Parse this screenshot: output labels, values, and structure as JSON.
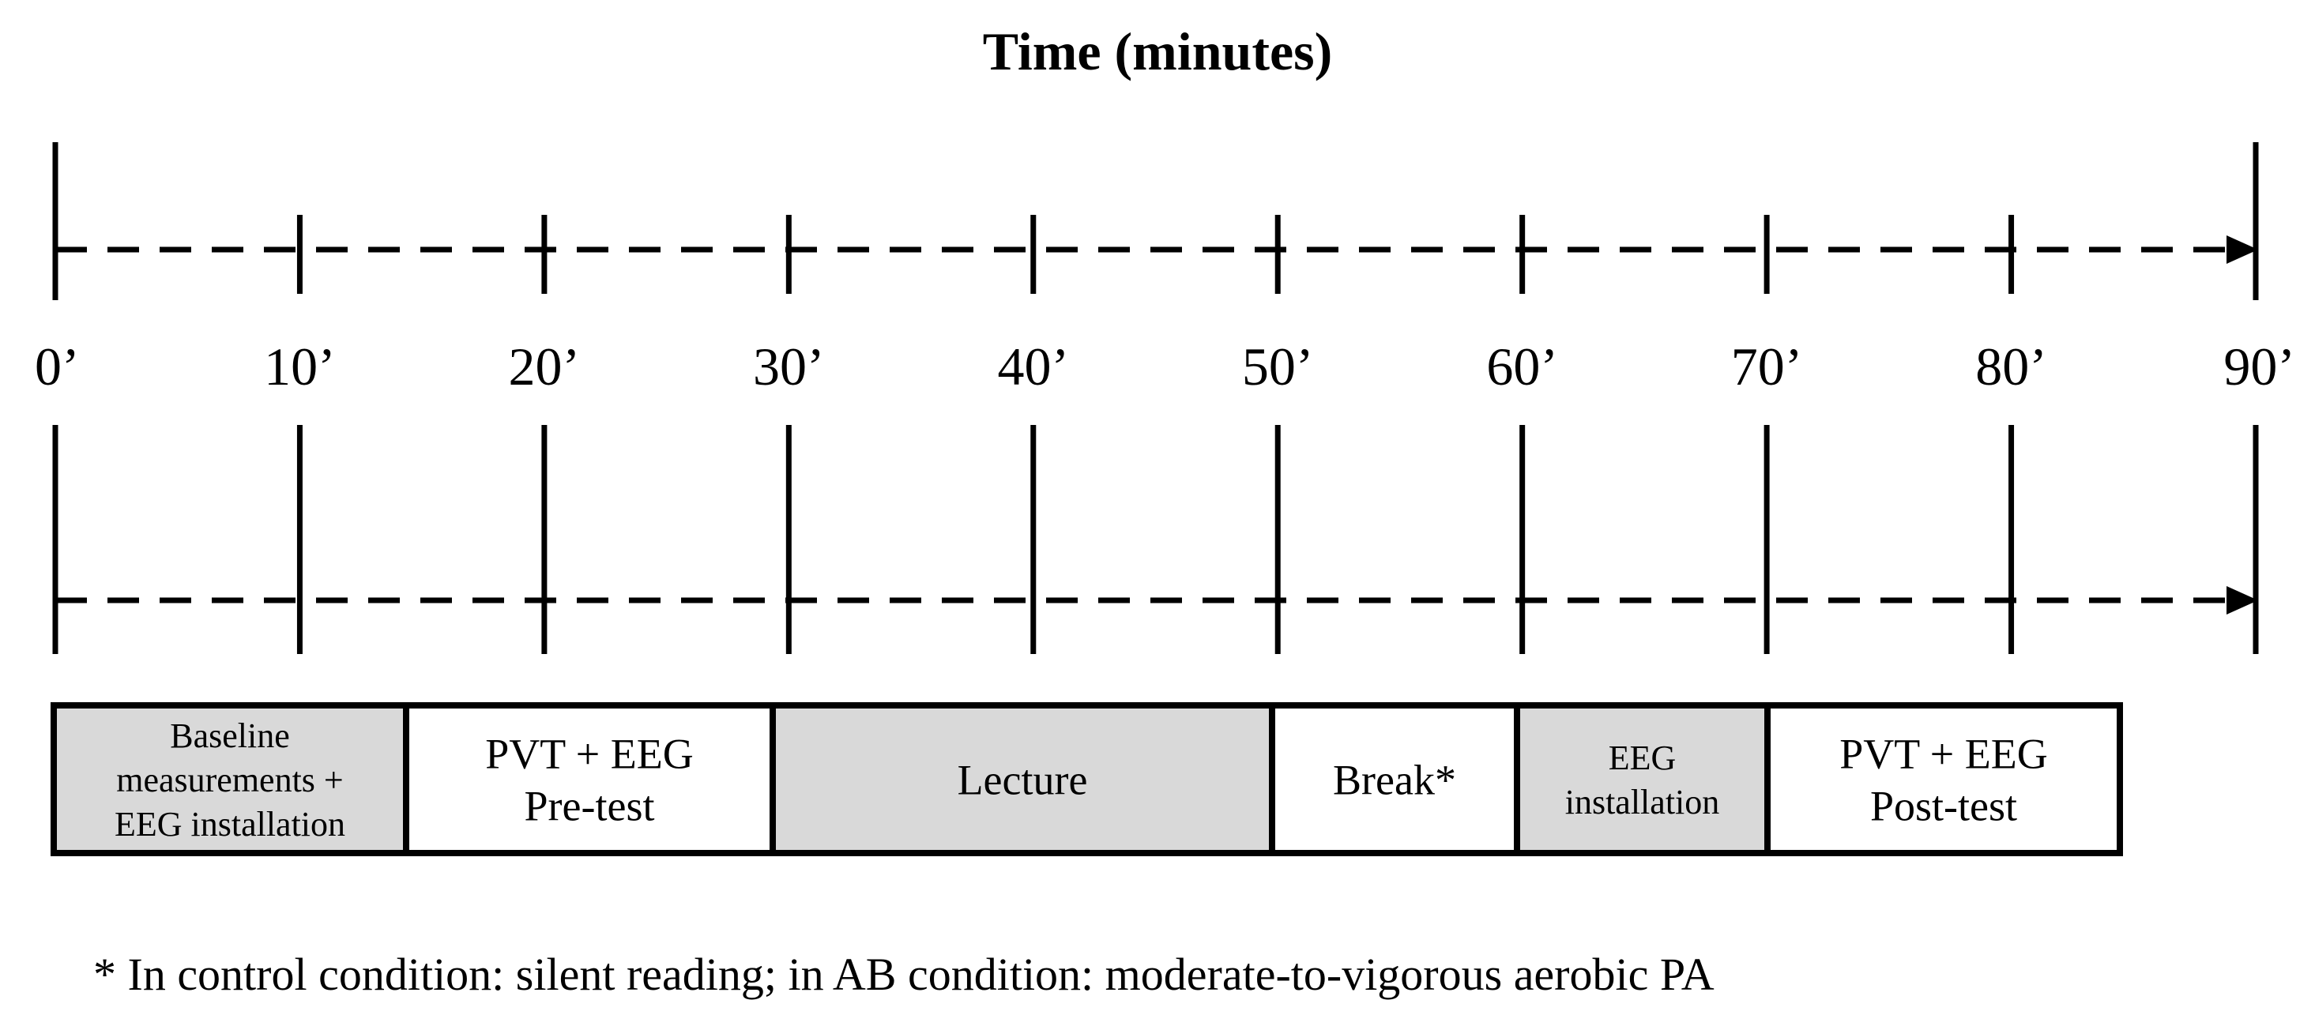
{
  "title": "Time (minutes)",
  "ticks": [
    "0’",
    "10’",
    "20’",
    "30’",
    "40’",
    "50’",
    "60’",
    "70’",
    "80’",
    "90’"
  ],
  "phases": [
    {
      "id": "baseline",
      "lines": [
        "Baseline",
        "measurements +",
        "EEG installation"
      ],
      "shaded": true,
      "start": 0,
      "end": 15
    },
    {
      "id": "pvt-pre",
      "lines": [
        "PVT + EEG",
        "Pre-test"
      ],
      "shaded": false,
      "start": 15,
      "end": 30
    },
    {
      "id": "lecture",
      "lines": [
        "Lecture"
      ],
      "shaded": true,
      "start": 30,
      "end": 50
    },
    {
      "id": "break",
      "lines": [
        "Break*"
      ],
      "shaded": false,
      "start": 50,
      "end": 60
    },
    {
      "id": "eeg-installation",
      "lines": [
        "EEG",
        "installation"
      ],
      "shaded": true,
      "start": 60,
      "end": 70
    },
    {
      "id": "pvt-post",
      "lines": [
        "PVT + EEG",
        "Post-test"
      ],
      "shaded": false,
      "start": 70,
      "end": 85
    }
  ],
  "footnote": "* In control condition: silent reading; in AB condition: moderate-to-vigorous aerobic PA",
  "colors": {
    "line": "#000000",
    "shaded": "#d9d9d9",
    "unshaded": "#ffffff"
  }
}
